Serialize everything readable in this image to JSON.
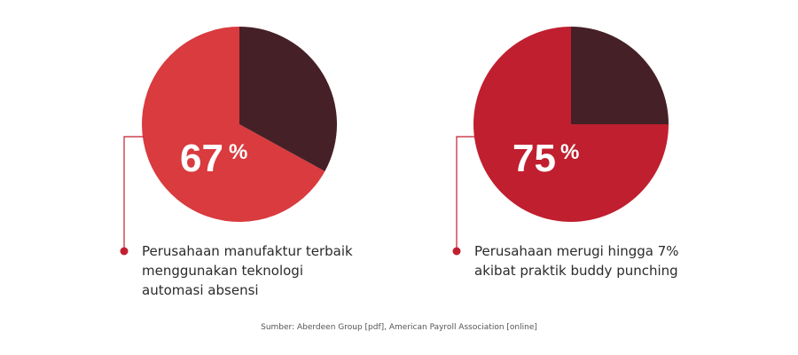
{
  "chart_data": [
    {
      "type": "pie",
      "values": [
        67,
        33
      ],
      "value_label": "67",
      "unit": "%",
      "slice_colors": [
        "#d93b3e",
        "#462027"
      ],
      "description": [
        "Perusahaan manufaktur terbaik",
        "menggunakan teknologi",
        "automasi absensi"
      ]
    },
    {
      "type": "pie",
      "values": [
        75,
        25
      ],
      "value_label": "75",
      "unit": "%",
      "slice_colors": [
        "#c01f2f",
        "#462027"
      ],
      "description": [
        "Perusahaan merugi hingga 7%",
        "akibat praktik buddy punching"
      ]
    }
  ],
  "source_note": "Sumber: Aberdeen Group [pdf], American Payroll Association [online]",
  "accent_color": "#c01f2f"
}
